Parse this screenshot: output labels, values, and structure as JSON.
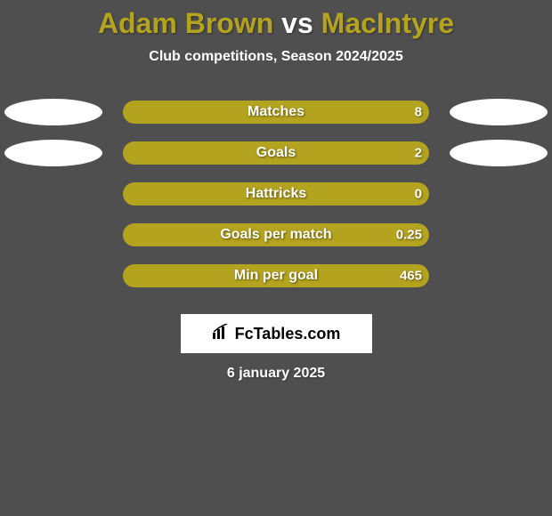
{
  "title": {
    "player1": "Adam Brown",
    "vs": " vs ",
    "player2": "MacIntyre",
    "player1_color": "#b4a31f",
    "player2_color": "#b4a31f"
  },
  "subtitle": "Club competitions, Season 2024/2025",
  "bar_color_left": "#b4a31f",
  "bar_color_right": "#b4a31f",
  "bar_bg": "#4f4f4f",
  "stats": [
    {
      "label": "Matches",
      "left_val": "",
      "right_val": "8",
      "left_pct": 0,
      "right_pct": 100,
      "show_avatars": true
    },
    {
      "label": "Goals",
      "left_val": "",
      "right_val": "2",
      "left_pct": 0,
      "right_pct": 100,
      "show_avatars": true
    },
    {
      "label": "Hattricks",
      "left_val": "",
      "right_val": "0",
      "left_pct": 0,
      "right_pct": 100,
      "show_avatars": false
    },
    {
      "label": "Goals per match",
      "left_val": "",
      "right_val": "0.25",
      "left_pct": 0,
      "right_pct": 100,
      "show_avatars": false
    },
    {
      "label": "Min per goal",
      "left_val": "",
      "right_val": "465",
      "left_pct": 0,
      "right_pct": 100,
      "show_avatars": false
    }
  ],
  "brand": "FcTables.com",
  "date": "6 january 2025",
  "avatar_color": "#ffffff"
}
